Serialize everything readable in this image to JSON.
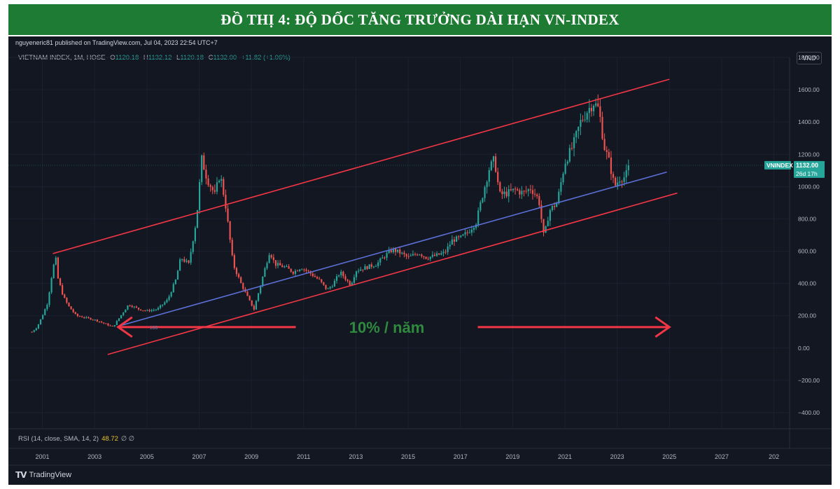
{
  "banner_title": "ĐỒ THỊ 4: ĐỘ DỐC TĂNG TRƯỞNG DÀI HẠN VN-INDEX",
  "publisher_line": "nguyeneric81 published on TradingView.com, Jul 04, 2023 22:54 UTC+7",
  "legend": {
    "symbol": "VIETNAM INDEX, 1M, HOSE",
    "open_label": "O",
    "open": "1120.18",
    "high_label": "H",
    "high": "1132.12",
    "low_label": "L",
    "low": "1120.18",
    "close_label": "C",
    "close": "1132.00",
    "change": "+11.82 (+1.06%)"
  },
  "currency": "VND",
  "price_tag": {
    "name": "VNINDEX",
    "value": "1132.00",
    "countdown": "26d 17h"
  },
  "annotation": "10% / năm",
  "small_marker": "168",
  "rsi_label": "RSI (14, close, SMA, 14, 2)",
  "rsi_value": "48.72",
  "rsi_symbols": "∅ ∅",
  "brand": "TradingView",
  "colors": {
    "banner": "#1e7b34",
    "up": "#26a69a",
    "down": "#ef5350",
    "channel": "#f23645",
    "midline": "#5b6fd6",
    "annotation": "#2e8b3e"
  },
  "chart_data": {
    "type": "candlestick",
    "title": "VIETNAM INDEX, 1M, HOSE",
    "xlabel": "",
    "ylabel": "",
    "x_ticks": [
      "2001",
      "2003",
      "2005",
      "2007",
      "2009",
      "2011",
      "2013",
      "2015",
      "2017",
      "2019",
      "2021",
      "2023",
      "2025",
      "2027",
      "202"
    ],
    "y_ticks": [
      "1800.00",
      "1600.00",
      "1400.00",
      "1200.00",
      "1000.00",
      "800.00",
      "600.00",
      "400.00",
      "200.00",
      "0.00",
      "−200.00",
      "−400.00"
    ],
    "ylim": [
      -500,
      1800
    ],
    "xlim": [
      1999.7,
      2029.6
    ],
    "last_close": 1132.0,
    "price_path": [
      [
        2000.6,
        100
      ],
      [
        2000.8,
        130
      ],
      [
        2001.0,
        200
      ],
      [
        2001.2,
        280
      ],
      [
        2001.35,
        440
      ],
      [
        2001.5,
        570
      ],
      [
        2001.6,
        430
      ],
      [
        2001.8,
        320
      ],
      [
        2002.0,
        260
      ],
      [
        2002.3,
        200
      ],
      [
        2002.6,
        190
      ],
      [
        2003.0,
        175
      ],
      [
        2003.4,
        150
      ],
      [
        2003.7,
        130
      ],
      [
        2004.0,
        200
      ],
      [
        2004.3,
        270
      ],
      [
        2004.7,
        240
      ],
      [
        2005.0,
        230
      ],
      [
        2005.4,
        240
      ],
      [
        2005.8,
        300
      ],
      [
        2006.1,
        420
      ],
      [
        2006.3,
        560
      ],
      [
        2006.6,
        520
      ],
      [
        2006.9,
        800
      ],
      [
        2007.1,
        1170
      ],
      [
        2007.3,
        1050
      ],
      [
        2007.6,
        950
      ],
      [
        2007.8,
        1080
      ],
      [
        2008.0,
        900
      ],
      [
        2008.3,
        520
      ],
      [
        2008.6,
        400
      ],
      [
        2008.9,
        300
      ],
      [
        2009.1,
        240
      ],
      [
        2009.4,
        420
      ],
      [
        2009.7,
        600
      ],
      [
        2009.9,
        520
      ],
      [
        2010.3,
        500
      ],
      [
        2010.6,
        470
      ],
      [
        2010.9,
        500
      ],
      [
        2011.2,
        470
      ],
      [
        2011.6,
        420
      ],
      [
        2011.9,
        360
      ],
      [
        2012.1,
        390
      ],
      [
        2012.4,
        470
      ],
      [
        2012.8,
        390
      ],
      [
        2013.0,
        480
      ],
      [
        2013.4,
        500
      ],
      [
        2013.8,
        520
      ],
      [
        2014.1,
        570
      ],
      [
        2014.4,
        610
      ],
      [
        2014.7,
        590
      ],
      [
        2015.0,
        560
      ],
      [
        2015.4,
        590
      ],
      [
        2015.7,
        560
      ],
      [
        2016.0,
        570
      ],
      [
        2016.4,
        590
      ],
      [
        2016.7,
        670
      ],
      [
        2017.0,
        680
      ],
      [
        2017.3,
        720
      ],
      [
        2017.6,
        780
      ],
      [
        2017.9,
        980
      ],
      [
        2018.1,
        1110
      ],
      [
        2018.3,
        1170
      ],
      [
        2018.5,
        950
      ],
      [
        2018.8,
        960
      ],
      [
        2019.1,
        980
      ],
      [
        2019.4,
        960
      ],
      [
        2019.7,
        990
      ],
      [
        2020.0,
        920
      ],
      [
        2020.2,
        680
      ],
      [
        2020.4,
        850
      ],
      [
        2020.7,
        900
      ],
      [
        2021.0,
        1150
      ],
      [
        2021.3,
        1250
      ],
      [
        2021.6,
        1400
      ],
      [
        2021.9,
        1480
      ],
      [
        2022.1,
        1520
      ],
      [
        2022.3,
        1480
      ],
      [
        2022.5,
        1250
      ],
      [
        2022.7,
        1150
      ],
      [
        2022.9,
        1000
      ],
      [
        2023.1,
        1050
      ],
      [
        2023.3,
        1060
      ],
      [
        2023.5,
        1132
      ]
    ],
    "upper_channel": [
      [
        2001.4,
        585
      ],
      [
        2025.0,
        1665
      ]
    ],
    "middle_line": [
      [
        2003.9,
        135
      ],
      [
        2024.9,
        1090
      ]
    ],
    "lower_channel": [
      [
        2003.5,
        -40
      ],
      [
        2025.3,
        960
      ]
    ],
    "arrow_range": [
      2003.9,
      2025.0
    ],
    "arrow_level": 130
  }
}
